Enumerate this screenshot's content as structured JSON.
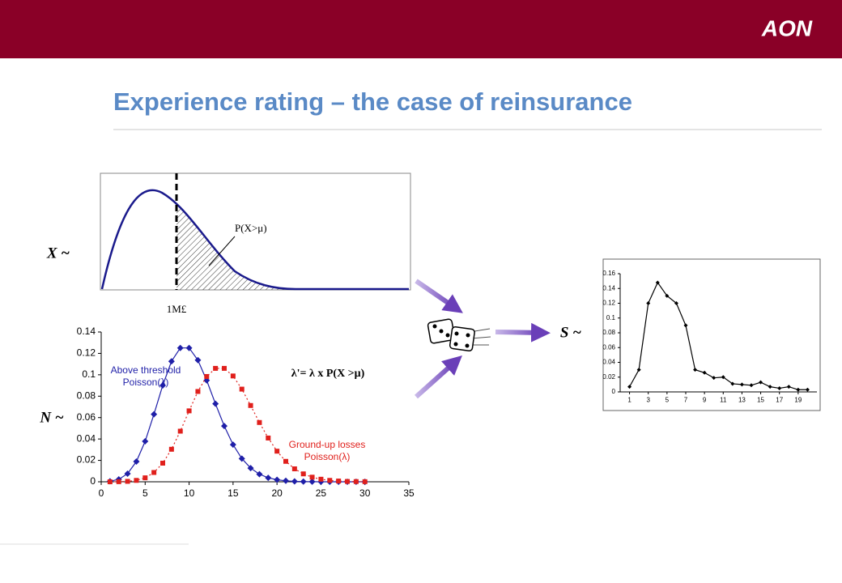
{
  "header": {
    "logo": "AON",
    "title": "Experience rating – the case of reinsurance"
  },
  "severity_panel": {
    "label": "X ~",
    "threshold_label": "1M£",
    "annotation": "P(X>μ)"
  },
  "frequency_label": "N ~",
  "frequency_annotation": "λ'= λ x P(X >μ)",
  "aggregate_label": "S ~",
  "chart_data": [
    {
      "type": "line",
      "x": [
        1,
        2,
        3,
        4,
        5,
        6,
        7,
        8,
        9,
        10,
        11,
        12,
        13,
        14,
        15,
        16,
        17,
        18,
        19,
        20,
        21,
        22,
        23,
        24,
        25,
        26,
        27,
        28,
        29,
        30
      ],
      "xlim": [
        0,
        35
      ],
      "xticks": [
        0,
        5,
        10,
        15,
        20,
        25,
        30,
        35
      ],
      "ylim": [
        0,
        0.14
      ],
      "yticks": [
        0,
        0.02,
        0.04,
        0.06,
        0.08,
        0.1,
        0.12,
        0.14
      ],
      "series": [
        {
          "name": "Above threshold Poisson(λ)",
          "color": "#1f1fa8",
          "marker": "diamond",
          "line_style": "solid",
          "values": [
            0.0005,
            0.0023,
            0.0076,
            0.0189,
            0.0378,
            0.0631,
            0.0901,
            0.1126,
            0.1251,
            0.1251,
            0.1137,
            0.0948,
            0.0729,
            0.0521,
            0.0347,
            0.0217,
            0.0128,
            0.0071,
            0.0037,
            0.0019,
            0.0009,
            0.0004,
            0.0002,
            0.0001,
            0,
            0,
            0,
            0,
            0,
            0
          ]
        },
        {
          "name": "Ground-up losses Poisson(λ)",
          "color": "#e0201c",
          "marker": "square",
          "line_style": "dotted",
          "values": [
            0,
            0.0001,
            0.0004,
            0.0013,
            0.0037,
            0.0087,
            0.0174,
            0.0304,
            0.0473,
            0.0663,
            0.0844,
            0.0984,
            0.106,
            0.106,
            0.0989,
            0.0866,
            0.0713,
            0.0554,
            0.0409,
            0.0286,
            0.0191,
            0.0121,
            0.0074,
            0.0043,
            0.0024,
            0.0013,
            0.0007,
            0.0003,
            0.0002,
            0.0001
          ]
        }
      ]
    },
    {
      "type": "line",
      "x": [
        1,
        2,
        3,
        4,
        5,
        6,
        7,
        8,
        9,
        10,
        11,
        12,
        13,
        14,
        15,
        16,
        17,
        18,
        19,
        20
      ],
      "xlim": [
        0,
        21
      ],
      "xticks": [
        1,
        3,
        5,
        7,
        9,
        11,
        13,
        15,
        17,
        19
      ],
      "ylim": [
        0,
        0.16
      ],
      "yticks": [
        0,
        0.02,
        0.04,
        0.06,
        0.08,
        0.1,
        0.12,
        0.14,
        0.16
      ],
      "series": [
        {
          "color": "#000000",
          "marker": "diamond",
          "line_style": "solid",
          "values": [
            0.007,
            0.03,
            0.12,
            0.148,
            0.13,
            0.12,
            0.09,
            0.03,
            0.026,
            0.019,
            0.02,
            0.011,
            0.01,
            0.009,
            0.013,
            0.007,
            0.005,
            0.007,
            0.003,
            0.003
          ]
        }
      ]
    }
  ]
}
